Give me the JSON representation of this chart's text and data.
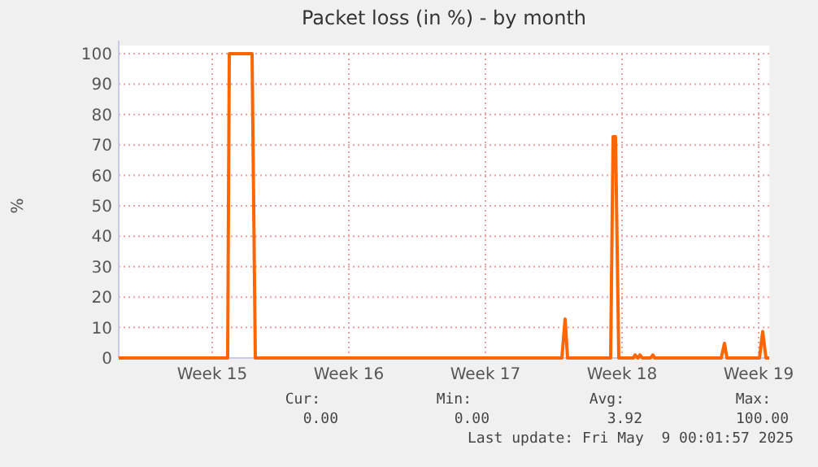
{
  "chart_data": {
    "type": "line",
    "title": "Packet loss (in %) - by month",
    "ylabel": "%",
    "x": [
      "2025-04-05T16:00",
      "2025-04-11T06:00",
      "2025-04-11T08:00",
      "2025-04-11T10:00",
      "2025-04-12T12:00",
      "2025-04-12T14:00",
      "2025-04-12T16:00",
      "2025-04-28T09:00",
      "2025-04-28T13:00",
      "2025-04-28T16:00",
      "2025-04-30T21:00",
      "2025-05-01T00:00",
      "2025-05-01T03:00",
      "2025-05-01T07:00",
      "2025-05-02T01:00",
      "2025-05-02T03:00",
      "2025-05-02T06:00",
      "2025-05-02T07:00",
      "2025-05-02T09:00",
      "2025-05-02T12:00",
      "2025-05-02T22:00",
      "2025-05-03T01:00",
      "2025-05-03T03:00",
      "2025-05-06T13:00",
      "2025-05-06T17:00",
      "2025-05-06T20:00",
      "2025-05-08T12:00",
      "2025-05-08T16:00",
      "2025-05-08T20:00",
      "2025-05-09T00:00"
    ],
    "series": [
      {
        "color": "#ff6600",
        "values": [
          0,
          0,
          100,
          100,
          100,
          50,
          0,
          0,
          12.8,
          0,
          0,
          72.7,
          72.7,
          0,
          0,
          1,
          0,
          0,
          1,
          0,
          0,
          1,
          0,
          0,
          4.8,
          0,
          0,
          8.7,
          0,
          0
        ]
      }
    ],
    "xlim": [
      "2025-04-05T16:00",
      "2025-05-09T00:00"
    ],
    "xticks": [
      {
        "value": "2025-04-10T11:00",
        "label": "Week 15"
      },
      {
        "value": "2025-04-17T11:00",
        "label": "Week 16"
      },
      {
        "value": "2025-04-24T11:00",
        "label": "Week 17"
      },
      {
        "value": "2025-05-01T11:00",
        "label": "Week 18"
      },
      {
        "value": "2025-05-08T11:00",
        "label": "Week 19"
      }
    ],
    "ylim": [
      0,
      100
    ],
    "yticks": [
      0,
      10,
      20,
      30,
      40,
      50,
      60,
      70,
      80,
      90,
      100
    ],
    "grid": true,
    "marker": "none",
    "line_style": "solid",
    "annotations": [
      "Cur:",
      "Min:",
      "Avg:",
      "Max:",
      "0.00",
      "0.00",
      "3.92",
      "100.00",
      "Last update: Fri May  9 00:01:57 2025"
    ]
  }
}
